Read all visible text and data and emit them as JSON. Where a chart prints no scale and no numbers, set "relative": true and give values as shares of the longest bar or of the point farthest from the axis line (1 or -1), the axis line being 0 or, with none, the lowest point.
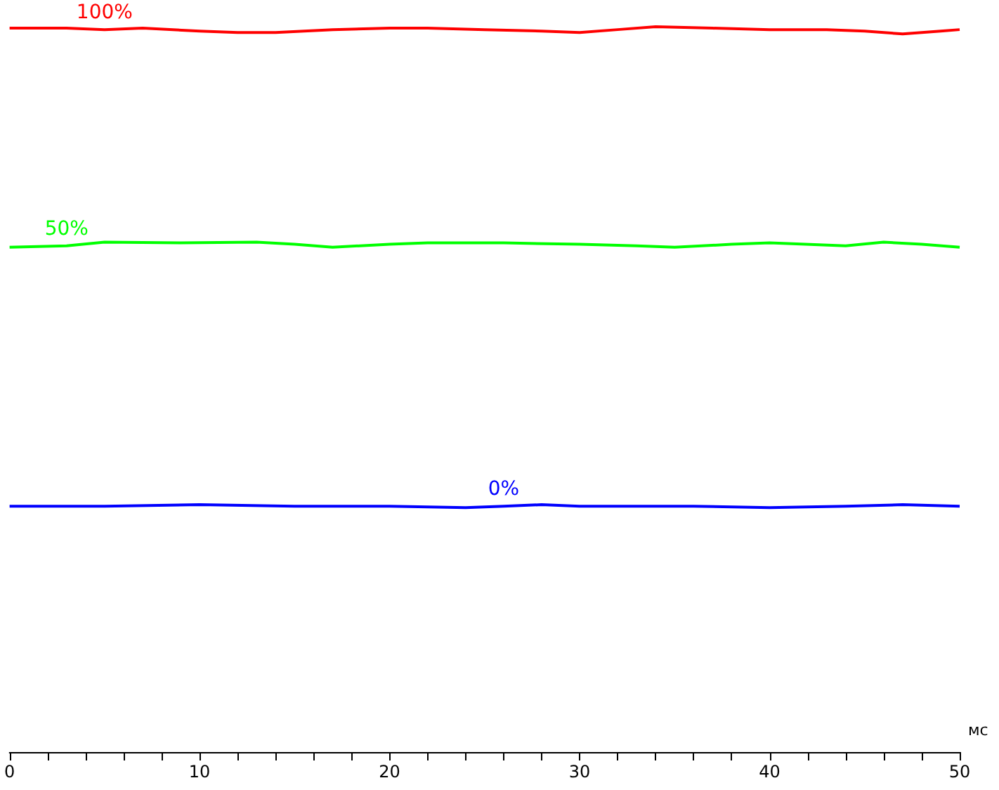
{
  "chart_data": {
    "type": "line",
    "relative": true,
    "xlabel": "мс",
    "xlim": [
      0,
      50
    ],
    "xticks": [
      0,
      {
        "value": 2,
        "label": null
      },
      {
        "value": 4,
        "label": null
      },
      {
        "value": 6,
        "label": null
      },
      {
        "value": 8,
        "label": null
      },
      10,
      {
        "value": 12,
        "label": null
      },
      {
        "value": 14,
        "label": null
      },
      {
        "value": 16,
        "label": null
      },
      {
        "value": 18,
        "label": null
      },
      20,
      {
        "value": 22,
        "label": null
      },
      {
        "value": 24,
        "label": null
      },
      {
        "value": 26,
        "label": null
      },
      {
        "value": 28,
        "label": null
      },
      30,
      {
        "value": 32,
        "label": null
      },
      {
        "value": 34,
        "label": null
      },
      {
        "value": 36,
        "label": null
      },
      {
        "value": 38,
        "label": null
      },
      40,
      {
        "value": 42,
        "label": null
      },
      {
        "value": 44,
        "label": null
      },
      {
        "value": 46,
        "label": null
      },
      {
        "value": 48,
        "label": null
      },
      50
    ],
    "grid": false,
    "marker": "none",
    "line_style": "solid",
    "series": [
      {
        "name": "100%",
        "color": "#ff0000",
        "x": [
          0,
          3,
          5,
          7,
          10,
          12,
          14,
          17,
          20,
          22,
          25,
          28,
          30,
          32,
          34,
          37,
          40,
          43,
          45,
          47,
          49,
          50
        ],
        "values": [
          0.998,
          0.998,
          0.996,
          0.998,
          0.994,
          0.992,
          0.992,
          0.996,
          0.998,
          0.998,
          0.996,
          0.994,
          0.992,
          0.996,
          1,
          0.998,
          0.996,
          0.996,
          0.994,
          0.99,
          0.994,
          0.996
        ]
      },
      {
        "name": "50%",
        "color": "#00ff00",
        "x": [
          0,
          3,
          5,
          9,
          13,
          15,
          17,
          20,
          22,
          26,
          30,
          33,
          35,
          38,
          40,
          44,
          46,
          48,
          50
        ],
        "values": [
          0.696,
          0.698,
          0.703,
          0.702,
          0.703,
          0.7,
          0.696,
          0.7,
          0.702,
          0.702,
          0.7,
          0.698,
          0.696,
          0.7,
          0.702,
          0.698,
          0.703,
          0.7,
          0.696
        ]
      },
      {
        "name": "0%",
        "color": "#0000ff",
        "x": [
          0,
          5,
          10,
          15,
          20,
          24,
          26,
          28,
          30,
          33,
          36,
          40,
          44,
          47,
          50
        ],
        "values": [
          0.339,
          0.339,
          0.341,
          0.339,
          0.339,
          0.337,
          0.339,
          0.341,
          0.339,
          0.339,
          0.339,
          0.337,
          0.339,
          0.341,
          0.339
        ]
      }
    ]
  }
}
